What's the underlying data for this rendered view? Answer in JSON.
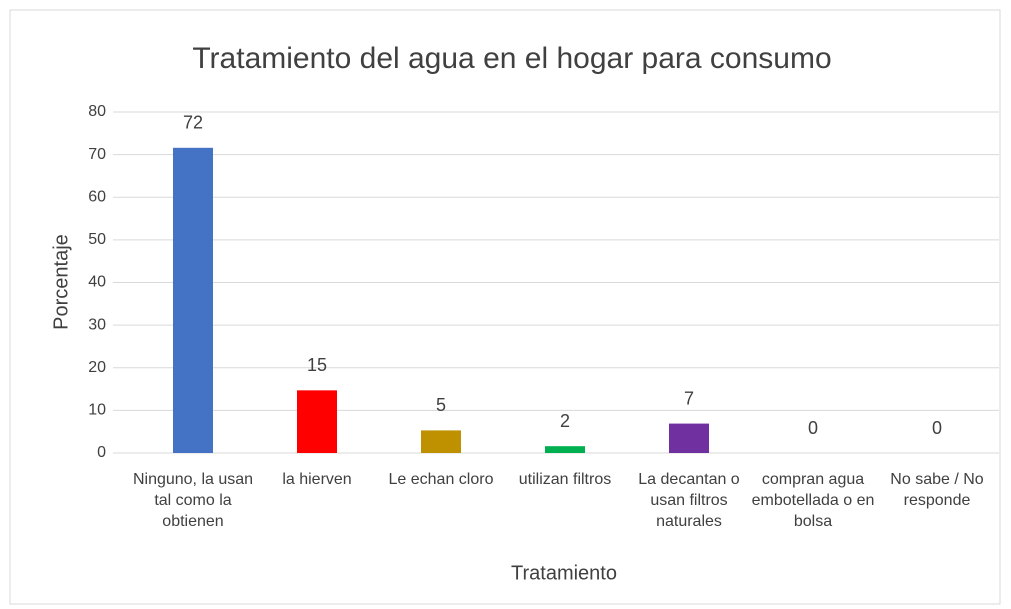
{
  "chart_data": {
    "type": "bar",
    "title": "Tratamiento del agua en el hogar para consumo",
    "x_label": "Tratamiento",
    "y_label": "Porcentaje",
    "categories": [
      "Ninguno, la usan tal como la obtienen",
      "la hierven",
      "Le echan cloro",
      "utilizan filtros",
      "La decantan o usan filtros naturales",
      "compran agua embotellada o en bolsa",
      "No sabe / No responde"
    ],
    "values": [
      71.6,
      14.7,
      5.3,
      1.6,
      6.9,
      0,
      0
    ],
    "value_labels": [
      "72",
      "15",
      "5",
      "2",
      "7",
      "0",
      "0"
    ],
    "colors": [
      "#4472c4",
      "#ff0000",
      "#bf9000",
      "#00b050",
      "#7030a0",
      "#ed7d31",
      "#a5a5a5"
    ],
    "ylim": [
      0,
      80
    ],
    "yticks": [
      0,
      10,
      20,
      30,
      40,
      50,
      60,
      70,
      80
    ],
    "grid": true
  }
}
